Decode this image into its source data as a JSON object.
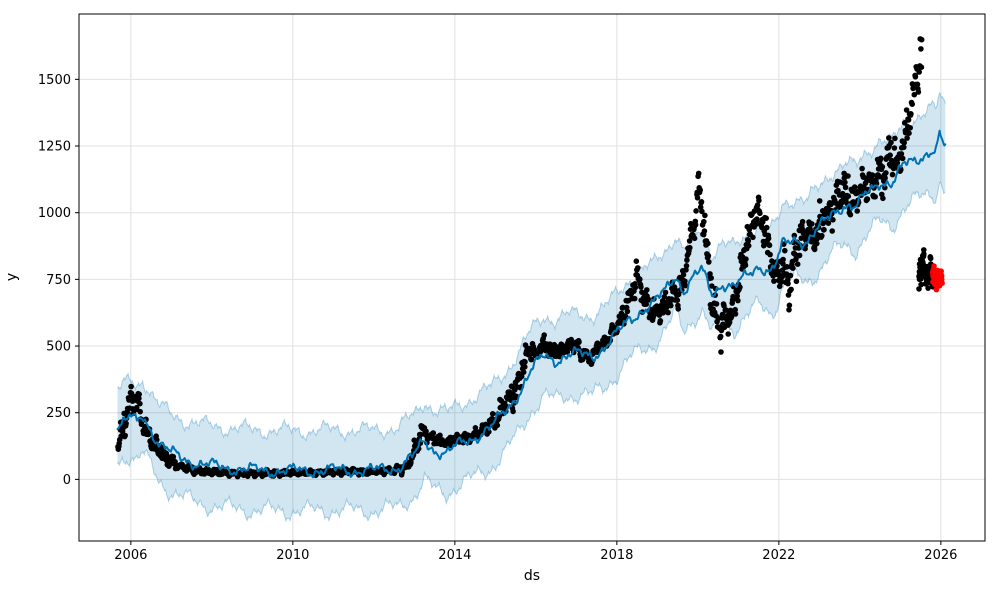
{
  "chart_data": {
    "type": "scatter",
    "subtype": "forecast-with-uncertainty-band",
    "title": "",
    "xlabel": "ds",
    "ylabel": "y",
    "grid": true,
    "legend": null,
    "x_domain": [
      2004.72,
      2027.09
    ],
    "y_domain": [
      -231,
      1745
    ],
    "x_ticks": [
      {
        "value": 2006,
        "label": "2006"
      },
      {
        "value": 2010,
        "label": "2010"
      },
      {
        "value": 2014,
        "label": "2014"
      },
      {
        "value": 2018,
        "label": "2018"
      },
      {
        "value": 2022,
        "label": "2022"
      },
      {
        "value": 2026,
        "label": "2026"
      }
    ],
    "y_ticks": [
      {
        "value": 0,
        "label": "0"
      },
      {
        "value": 250,
        "label": "250"
      },
      {
        "value": 500,
        "label": "500"
      },
      {
        "value": 750,
        "label": "750"
      },
      {
        "value": 1000,
        "label": "1000"
      },
      {
        "value": 1250,
        "label": "1250"
      },
      {
        "value": 1500,
        "label": "1500"
      }
    ],
    "colors": {
      "forecast_line": "#0072B2",
      "band_fill": "rgba(0,114,178,0.18)",
      "band_edge": "rgba(0,114,178,0.30)",
      "history_points": "#000000",
      "recent_points": "#ff0000",
      "grid": "#e0e0e0",
      "spine": "#000000",
      "text": "#000000"
    },
    "seed": 1337,
    "series": [
      {
        "name": "history",
        "kind": "scatter",
        "color": "#000000",
        "marker_radius": 2.8,
        "x_start": 2005.68,
        "x_end": 2025.53,
        "step": 0.012,
        "anchors": [
          [
            2005.68,
            135,
            22
          ],
          [
            2005.8,
            185,
            35
          ],
          [
            2005.92,
            250,
            45
          ],
          [
            2006.02,
            310,
            40
          ],
          [
            2006.1,
            330,
            28
          ],
          [
            2006.18,
            280,
            40
          ],
          [
            2006.3,
            210,
            35
          ],
          [
            2006.45,
            165,
            25
          ],
          [
            2006.6,
            130,
            22
          ],
          [
            2006.8,
            95,
            18
          ],
          [
            2007.0,
            65,
            14
          ],
          [
            2007.3,
            45,
            10
          ],
          [
            2007.6,
            35,
            8
          ],
          [
            2008.0,
            28,
            7
          ],
          [
            2008.6,
            22,
            6
          ],
          [
            2009.2,
            22,
            6
          ],
          [
            2009.8,
            24,
            6
          ],
          [
            2010.4,
            25,
            6
          ],
          [
            2011.0,
            28,
            6
          ],
          [
            2011.6,
            30,
            6
          ],
          [
            2012.1,
            28,
            6
          ],
          [
            2012.5,
            33,
            8
          ],
          [
            2012.8,
            50,
            12
          ],
          [
            2013.0,
            100,
            20
          ],
          [
            2013.18,
            180,
            22
          ],
          [
            2013.35,
            165,
            16
          ],
          [
            2013.55,
            148,
            13
          ],
          [
            2013.8,
            140,
            11
          ],
          [
            2014.1,
            152,
            11
          ],
          [
            2014.4,
            160,
            12
          ],
          [
            2014.7,
            180,
            15
          ],
          [
            2015.0,
            220,
            20
          ],
          [
            2015.25,
            280,
            25
          ],
          [
            2015.5,
            340,
            30
          ],
          [
            2015.7,
            430,
            32
          ],
          [
            2015.85,
            490,
            22
          ],
          [
            2016.0,
            465,
            22
          ],
          [
            2016.15,
            505,
            18
          ],
          [
            2016.35,
            488,
            22
          ],
          [
            2016.55,
            472,
            22
          ],
          [
            2016.75,
            495,
            18
          ],
          [
            2016.95,
            505,
            18
          ],
          [
            2017.15,
            472,
            20
          ],
          [
            2017.35,
            455,
            18
          ],
          [
            2017.55,
            490,
            16
          ],
          [
            2017.75,
            520,
            16
          ],
          [
            2017.95,
            555,
            18
          ],
          [
            2018.15,
            615,
            24
          ],
          [
            2018.35,
            680,
            35
          ],
          [
            2018.48,
            765,
            40
          ],
          [
            2018.62,
            700,
            32
          ],
          [
            2018.8,
            645,
            28
          ],
          [
            2019.0,
            618,
            26
          ],
          [
            2019.2,
            650,
            28
          ],
          [
            2019.4,
            700,
            32
          ],
          [
            2019.6,
            715,
            38
          ],
          [
            2019.78,
            860,
            55
          ],
          [
            2019.92,
            960,
            45
          ],
          [
            2020.02,
            1110,
            55
          ],
          [
            2020.12,
            1000,
            65
          ],
          [
            2020.25,
            810,
            75
          ],
          [
            2020.4,
            630,
            55
          ],
          [
            2020.55,
            565,
            38
          ],
          [
            2020.72,
            605,
            42
          ],
          [
            2020.88,
            650,
            45
          ],
          [
            2021.05,
            760,
            48
          ],
          [
            2021.22,
            890,
            55
          ],
          [
            2021.45,
            1010,
            50
          ],
          [
            2021.65,
            940,
            55
          ],
          [
            2021.8,
            830,
            48
          ],
          [
            2021.95,
            750,
            45
          ],
          [
            2022.1,
            790,
            65
          ],
          [
            2022.25,
            720,
            55
          ],
          [
            2022.45,
            870,
            65
          ],
          [
            2022.7,
            930,
            55
          ],
          [
            2022.95,
            920,
            50
          ],
          [
            2023.2,
            1000,
            55
          ],
          [
            2023.45,
            1060,
            70
          ],
          [
            2023.6,
            1100,
            80
          ],
          [
            2023.8,
            1040,
            55
          ],
          [
            2024.05,
            1080,
            55
          ],
          [
            2024.3,
            1120,
            55
          ],
          [
            2024.55,
            1150,
            70
          ],
          [
            2024.75,
            1200,
            70
          ],
          [
            2024.95,
            1180,
            65
          ],
          [
            2025.1,
            1280,
            70
          ],
          [
            2025.25,
            1380,
            80
          ],
          [
            2025.4,
            1520,
            80
          ],
          [
            2025.53,
            1600,
            50
          ]
        ]
      },
      {
        "name": "history-tail-drop",
        "kind": "scatter",
        "color": "#000000",
        "marker_radius": 2.8,
        "x_start": 2025.46,
        "x_end": 2025.81,
        "step": 0.0035,
        "anchors": [
          [
            2025.46,
            770,
            35
          ],
          [
            2025.62,
            785,
            32
          ],
          [
            2025.81,
            748,
            30
          ]
        ]
      },
      {
        "name": "recent-actuals",
        "kind": "scatter",
        "color": "#ff0000",
        "marker_radius": 2.8,
        "x_start": 2025.8,
        "x_end": 2026.03,
        "step": 0.0035,
        "anchors": [
          [
            2025.8,
            775,
            26
          ],
          [
            2025.92,
            758,
            26
          ],
          [
            2026.03,
            735,
            24
          ]
        ]
      }
    ],
    "forecast": {
      "name": "yhat",
      "color": "#0072B2",
      "line_width": 2,
      "x_start": 2005.67,
      "x_end": 2026.11,
      "anchors": [
        [
          2005.67,
          200
        ],
        [
          2005.85,
          215
        ],
        [
          2006.0,
          235
        ],
        [
          2006.15,
          210
        ],
        [
          2006.3,
          240
        ],
        [
          2006.5,
          185
        ],
        [
          2006.7,
          135
        ],
        [
          2007.0,
          98
        ],
        [
          2007.4,
          72
        ],
        [
          2007.8,
          55
        ],
        [
          2008.3,
          45
        ],
        [
          2009.0,
          35
        ],
        [
          2010.0,
          32
        ],
        [
          2011.0,
          35
        ],
        [
          2012.0,
          33
        ],
        [
          2012.6,
          45
        ],
        [
          2013.0,
          90
        ],
        [
          2013.25,
          145
        ],
        [
          2013.5,
          110
        ],
        [
          2013.8,
          98
        ],
        [
          2014.1,
          130
        ],
        [
          2014.5,
          160
        ],
        [
          2014.9,
          195
        ],
        [
          2015.3,
          265
        ],
        [
          2015.6,
          330
        ],
        [
          2015.9,
          410
        ],
        [
          2016.2,
          465
        ],
        [
          2016.5,
          448
        ],
        [
          2016.8,
          465
        ],
        [
          2017.1,
          470
        ],
        [
          2017.4,
          465
        ],
        [
          2017.7,
          495
        ],
        [
          2018.0,
          545
        ],
        [
          2018.3,
          600
        ],
        [
          2018.6,
          632
        ],
        [
          2018.9,
          655
        ],
        [
          2019.2,
          710
        ],
        [
          2019.45,
          770
        ],
        [
          2019.65,
          705
        ],
        [
          2019.9,
          755
        ],
        [
          2020.1,
          785
        ],
        [
          2020.35,
          700
        ],
        [
          2020.6,
          735
        ],
        [
          2020.9,
          715
        ],
        [
          2021.2,
          765
        ],
        [
          2021.5,
          805
        ],
        [
          2021.8,
          775
        ],
        [
          2021.95,
          810
        ],
        [
          2022.1,
          880
        ],
        [
          2022.4,
          905
        ],
        [
          2022.7,
          890
        ],
        [
          2023.0,
          940
        ],
        [
          2023.3,
          1000
        ],
        [
          2023.6,
          1030
        ],
        [
          2023.9,
          1015
        ],
        [
          2024.2,
          1080
        ],
        [
          2024.5,
          1120
        ],
        [
          2024.8,
          1105
        ],
        [
          2025.1,
          1180
        ],
        [
          2025.4,
          1205
        ],
        [
          2025.7,
          1225
        ],
        [
          2025.9,
          1230
        ],
        [
          2025.97,
          1290
        ],
        [
          2026.04,
          1250
        ],
        [
          2026.11,
          1255
        ]
      ],
      "interval_halfwidth": [
        [
          2005.67,
          135
        ],
        [
          2008.0,
          150
        ],
        [
          2014.0,
          150
        ],
        [
          2020.0,
          150
        ],
        [
          2024.0,
          155
        ],
        [
          2026.11,
          158
        ]
      ],
      "seasonality": {
        "line": [
          [
            15,
            1.0,
            1.4
          ],
          [
            9,
            3.13,
            0.5
          ],
          [
            6,
            7.37,
            2.2
          ],
          [
            3,
            13.1,
            0.8
          ]
        ],
        "upper": [
          [
            20,
            1.0,
            2.6
          ],
          [
            12,
            3.07,
            1.2
          ],
          [
            7,
            8.3,
            0.4
          ],
          [
            4,
            19.7,
            2.0
          ]
        ],
        "lower": [
          [
            22,
            1.0,
            5.2
          ],
          [
            13,
            3.07,
            2.9
          ],
          [
            7,
            8.3,
            1.6
          ],
          [
            4,
            19.7,
            0.9
          ]
        ]
      }
    }
  }
}
